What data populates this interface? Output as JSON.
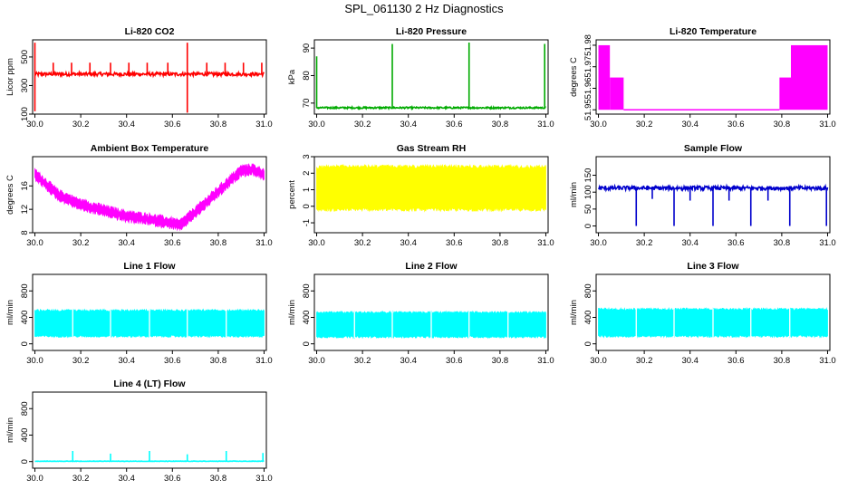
{
  "page_title": "SPL_061130  2 Hz Diagnostics",
  "chart_data": [
    {
      "type": "line",
      "title": "Li-820 CO2",
      "ylabel": "Licor ppm",
      "xlim": [
        29.99,
        31.01
      ],
      "ylim": [
        100,
        620
      ],
      "xticks": [
        "30.0",
        "30.2",
        "30.4",
        "30.6",
        "30.8",
        "31.0"
      ],
      "yticks": [
        "100",
        "300",
        "500"
      ],
      "color": "#ff0000",
      "series": [
        {
          "baseline": 380,
          "noise": 12,
          "x_range": [
            30.0,
            31.0
          ],
          "spikes": [
            [
              30.0,
              600
            ],
            [
              30.0,
              120
            ],
            [
              30.08,
              460
            ],
            [
              30.16,
              460
            ],
            [
              30.24,
              460
            ],
            [
              30.33,
              460
            ],
            [
              30.41,
              460
            ],
            [
              30.49,
              460
            ],
            [
              30.58,
              460
            ],
            [
              30.665,
              600
            ],
            [
              30.665,
              110
            ],
            [
              30.75,
              460
            ],
            [
              30.83,
              460
            ],
            [
              30.91,
              460
            ],
            [
              30.99,
              460
            ]
          ]
        }
      ]
    },
    {
      "type": "line",
      "title": "Li-820 Pressure",
      "ylabel": "kPa",
      "xlim": [
        29.99,
        31.01
      ],
      "ylim": [
        66,
        93
      ],
      "xticks": [
        "30.0",
        "30.2",
        "30.4",
        "30.6",
        "30.8",
        "31.0"
      ],
      "yticks": [
        "70",
        "80",
        "90"
      ],
      "color": "#00aa00",
      "series": [
        {
          "baseline": 68.3,
          "noise": 0.3,
          "x_range": [
            30.0,
            31.0
          ],
          "spikes": [
            [
              30.0,
              87
            ],
            [
              30.33,
              91.5
            ],
            [
              30.665,
              92
            ],
            [
              30.995,
              91.5
            ]
          ]
        }
      ]
    },
    {
      "type": "area",
      "title": "Li-820 Temperature",
      "ylabel": "degrees C",
      "xlim": [
        29.99,
        31.01
      ],
      "ylim": [
        51.948,
        51.9825
      ],
      "xticks": [
        "30.0",
        "30.2",
        "30.4",
        "30.6",
        "30.8",
        "31.0"
      ],
      "yticks": [
        "51.95",
        "51.96",
        "51.97",
        "51.98"
      ],
      "color": "#ff00ff",
      "series": [
        {
          "segments": [
            {
              "x": [
                30.0,
                30.05
              ],
              "low": 51.95,
              "high": 51.98
            },
            {
              "x": [
                30.05,
                30.11
              ],
              "low": 51.95,
              "high": 51.965
            },
            {
              "x": [
                30.11,
                30.79
              ],
              "low": 51.95,
              "high": 51.95
            },
            {
              "x": [
                30.79,
                30.84
              ],
              "low": 51.95,
              "high": 51.965
            },
            {
              "x": [
                30.84,
                31.0
              ],
              "low": 51.95,
              "high": 51.98
            }
          ]
        }
      ]
    },
    {
      "type": "area",
      "title": "Ambient Box Temperature",
      "ylabel": "degrees C",
      "xlim": [
        29.99,
        31.01
      ],
      "ylim": [
        8,
        21
      ],
      "xticks": [
        "30.0",
        "30.2",
        "30.4",
        "30.6",
        "30.8",
        "31.0"
      ],
      "yticks": [
        "8",
        "12",
        "16"
      ],
      "color": "#ff00ff",
      "series": [
        {
          "centerline": [
            [
              30.0,
              18.0
            ],
            [
              30.1,
              14.5
            ],
            [
              30.2,
              12.8
            ],
            [
              30.3,
              11.8
            ],
            [
              30.4,
              10.8
            ],
            [
              30.5,
              10.3
            ],
            [
              30.6,
              9.6
            ],
            [
              30.63,
              9.2
            ],
            [
              30.7,
              11.5
            ],
            [
              30.8,
              15.0
            ],
            [
              30.9,
              18.6
            ],
            [
              30.95,
              18.8
            ],
            [
              31.0,
              18.0
            ]
          ],
          "band": 1.4
        }
      ]
    },
    {
      "type": "area",
      "title": "Gas Stream RH",
      "ylabel": "percent",
      "xlim": [
        29.99,
        31.01
      ],
      "ylim": [
        -1.6,
        3.0
      ],
      "xticks": [
        "30.0",
        "30.2",
        "30.4",
        "30.6",
        "30.8",
        "31.0"
      ],
      "yticks": [
        "-1",
        "0",
        "1",
        "2",
        "3"
      ],
      "color": "#ffff00",
      "series": [
        {
          "low": -0.3,
          "high": 2.5,
          "x_range": [
            30.0,
            31.0
          ]
        }
      ]
    },
    {
      "type": "line",
      "title": "Sample Flow",
      "ylabel": "ml/min",
      "xlim": [
        29.99,
        31.01
      ],
      "ylim": [
        -20,
        205
      ],
      "xticks": [
        "30.0",
        "30.2",
        "30.4",
        "30.6",
        "30.8",
        "31.0"
      ],
      "yticks": [
        "0",
        "50",
        "100",
        "150"
      ],
      "color": "#0000cc",
      "series": [
        {
          "baseline": 112,
          "noise": 6,
          "x_range": [
            30.0,
            31.0
          ],
          "spikes": [
            [
              30.165,
              0
            ],
            [
              30.235,
              80
            ],
            [
              30.33,
              0
            ],
            [
              30.4,
              75
            ],
            [
              30.5,
              0
            ],
            [
              30.57,
              75
            ],
            [
              30.665,
              0
            ],
            [
              30.74,
              75
            ],
            [
              30.835,
              0
            ],
            [
              30.995,
              0
            ]
          ]
        }
      ]
    },
    {
      "type": "area",
      "title": "Line 1 Flow",
      "ylabel": "ml/min",
      "xlim": [
        29.99,
        31.01
      ],
      "ylim": [
        -100,
        1050
      ],
      "xticks": [
        "30.0",
        "30.2",
        "30.4",
        "30.6",
        "30.8",
        "31.0"
      ],
      "yticks": [
        "0",
        "400",
        "800"
      ],
      "color": "#00ffff",
      "series": [
        {
          "low": 100,
          "high": 520,
          "x_range": [
            30.0,
            31.0
          ]
        }
      ]
    },
    {
      "type": "area",
      "title": "Line 2 Flow",
      "ylabel": "ml/min",
      "xlim": [
        29.99,
        31.01
      ],
      "ylim": [
        -100,
        1050
      ],
      "xticks": [
        "30.0",
        "30.2",
        "30.4",
        "30.6",
        "30.8",
        "31.0"
      ],
      "yticks": [
        "0",
        "400",
        "800"
      ],
      "color": "#00ffff",
      "series": [
        {
          "low": 90,
          "high": 490,
          "x_range": [
            30.0,
            31.0
          ]
        }
      ]
    },
    {
      "type": "area",
      "title": "Line 3 Flow",
      "ylabel": "ml/min",
      "xlim": [
        29.99,
        31.01
      ],
      "ylim": [
        -100,
        1050
      ],
      "xticks": [
        "30.0",
        "30.2",
        "30.4",
        "30.6",
        "30.8",
        "31.0"
      ],
      "yticks": [
        "0",
        "400",
        "800"
      ],
      "color": "#00ffff",
      "series": [
        {
          "low": 100,
          "high": 540,
          "x_range": [
            30.0,
            31.0
          ]
        }
      ]
    },
    {
      "type": "line",
      "title": "Line 4 (LT) Flow",
      "ylabel": "ml/min",
      "xlim": [
        29.99,
        31.01
      ],
      "ylim": [
        -100,
        1050
      ],
      "xticks": [
        "30.0",
        "30.2",
        "30.4",
        "30.6",
        "30.8",
        "31.0"
      ],
      "yticks": [
        "0",
        "400",
        "800"
      ],
      "color": "#00ffff",
      "series": [
        {
          "baseline": 5,
          "noise": 3,
          "x_range": [
            30.0,
            31.0
          ],
          "spikes": [
            [
              30.165,
              160
            ],
            [
              30.33,
              120
            ],
            [
              30.5,
              160
            ],
            [
              30.665,
              110
            ],
            [
              30.835,
              160
            ],
            [
              30.995,
              130
            ]
          ]
        }
      ]
    }
  ]
}
